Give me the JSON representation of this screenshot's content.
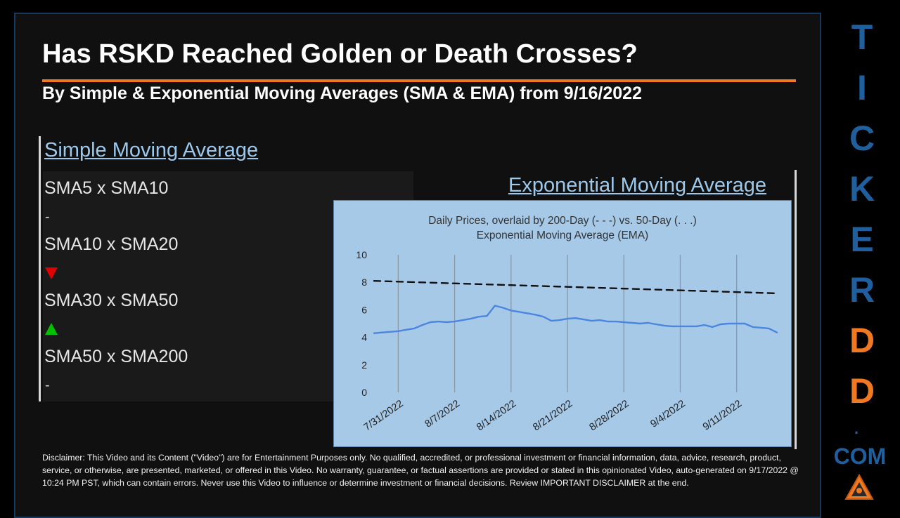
{
  "title": "Has RSKD Reached Golden or Death Crosses?",
  "subtitle": "By Simple & Exponential Moving Averages (SMA & EMA) from 9/16/2022",
  "sma": {
    "heading": "Simple Moving Average",
    "rows": [
      {
        "label": "SMA5 x SMA10",
        "signal": "-"
      },
      {
        "label": "SMA10 x SMA20",
        "signal": "down"
      },
      {
        "label": "SMA30 x SMA50",
        "signal": "up"
      },
      {
        "label": "SMA50 x SMA200",
        "signal": "-"
      }
    ]
  },
  "ema": {
    "heading": "Exponential Moving Average"
  },
  "chart_data": {
    "type": "line",
    "title": "Daily Prices, overlaid by 200-Day (- - -) vs. 50-Day (. . .)",
    "subtitle": "Exponential Moving Average (EMA)",
    "x_tick_labels": [
      "7/31/2022",
      "8/7/2022",
      "8/14/2022",
      "8/21/2022",
      "8/28/2022",
      "9/4/2022",
      "9/11/2022"
    ],
    "ylim": [
      0,
      10
    ],
    "y_ticks": [
      0,
      2,
      4,
      6,
      8,
      10
    ],
    "x_day_range": [
      "7/28/2022",
      "9/16/2022"
    ],
    "grid": "vertical",
    "series": [
      {
        "style": "solid",
        "color": "#4a86e0",
        "x": [
          "7/28",
          "7/29",
          "7/30",
          "7/31",
          "8/1",
          "8/2",
          "8/3",
          "8/4",
          "8/5",
          "8/6",
          "8/7",
          "8/8",
          "8/9",
          "8/10",
          "8/11",
          "8/12",
          "8/13",
          "8/14",
          "8/15",
          "8/16",
          "8/17",
          "8/18",
          "8/19",
          "8/20",
          "8/21",
          "8/22",
          "8/23",
          "8/24",
          "8/25",
          "8/26",
          "8/27",
          "8/28",
          "8/29",
          "8/30",
          "8/31",
          "9/1",
          "9/2",
          "9/3",
          "9/4",
          "9/5",
          "9/6",
          "9/7",
          "9/8",
          "9/9",
          "9/10",
          "9/11",
          "9/12",
          "9/13",
          "9/14",
          "9/15",
          "9/16"
        ],
        "values": [
          4.3,
          4.35,
          4.4,
          4.45,
          4.55,
          4.65,
          4.9,
          5.1,
          5.15,
          5.1,
          5.15,
          5.25,
          5.35,
          5.5,
          5.55,
          6.3,
          6.15,
          5.95,
          5.85,
          5.75,
          5.65,
          5.5,
          5.2,
          5.25,
          5.35,
          5.4,
          5.3,
          5.2,
          5.25,
          5.15,
          5.15,
          5.1,
          5.05,
          5.0,
          5.05,
          4.95,
          4.85,
          4.8,
          4.8,
          4.8,
          4.8,
          4.9,
          4.75,
          4.95,
          5.0,
          5.0,
          5.0,
          4.75,
          4.7,
          4.65,
          4.35
        ]
      },
      {
        "style": "dashed",
        "color": "#111111",
        "x": [
          "7/28",
          "9/16"
        ],
        "values": [
          8.1,
          7.2
        ]
      }
    ]
  },
  "brand": {
    "letters": [
      "T",
      "I",
      "C",
      "K",
      "E",
      "R",
      "D",
      "D"
    ],
    "letter_colors": [
      "#1f5f9e",
      "#1f5f9e",
      "#1f5f9e",
      "#1f5f9e",
      "#1f5f9e",
      "#1f5f9e",
      "#f07820",
      "#f07820"
    ],
    "dot": ".",
    "com": "COM"
  },
  "disclaimer": "Disclaimer: This Video and its Content (\"Video\") are for Entertainment Purposes only. No qualified, accredited, or professional investment or financial information, data, advice, research, product, service, or otherwise, are presented, marketed, or offered in this Video. No warranty, guarantee, or factual assertions are provided or stated in this opinionated Video, auto-generated on 9/17/2022 @ 10:24 PM PST, which can contain errors. Never use this Video to influence or determine investment or financial decisions. Review IMPORTANT DISCLAIMER at the end."
}
